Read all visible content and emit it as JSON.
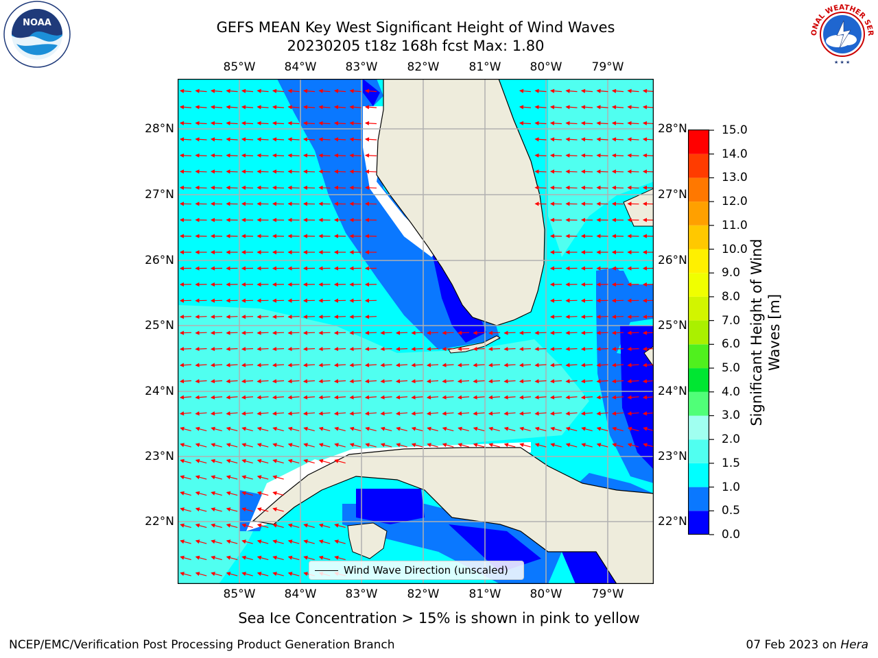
{
  "header": {
    "title_line1": "GEFS MEAN Key West Significant Height of Wind Waves",
    "title_line2": "20230205 t18z 168h fcst   Max: 1.80"
  },
  "logos": {
    "left_icon": "noaa-logo-icon",
    "left_text": "NOAA",
    "left_ring": "NATIONAL OCEANIC AND ATMOSPHERIC ADMINISTRATION · U.S. DEPARTMENT OF COMMERCE",
    "right_icon": "nws-logo-icon",
    "right_ring": "NATIONAL WEATHER SERVICE"
  },
  "map": {
    "lon_labels": [
      "85°W",
      "84°W",
      "83°W",
      "82°W",
      "81°W",
      "80°W",
      "79°W"
    ],
    "lat_labels": [
      "28°N",
      "27°N",
      "26°N",
      "25°N",
      "24°N",
      "23°N",
      "22°N"
    ],
    "gridlines": true,
    "land_color": "#eeecdc",
    "arrow_color": "#ff0000"
  },
  "colorbar": {
    "label": "Significant Height of Wind Waves [m]",
    "ticks": [
      "15.0",
      "14.0",
      "13.0",
      "12.0",
      "11.0",
      "10.0",
      "9.0",
      "8.0",
      "7.0",
      "6.0",
      "5.0",
      "4.0",
      "3.0",
      "2.0",
      "1.5",
      "1.0",
      "0.5",
      "0.0"
    ],
    "bands": [
      {
        "from": 0.0,
        "to": 0.5,
        "color": "#0000ff"
      },
      {
        "from": 0.5,
        "to": 1.0,
        "color": "#0a78ff"
      },
      {
        "from": 1.0,
        "to": 1.5,
        "color": "#00ffff"
      },
      {
        "from": 1.5,
        "to": 2.0,
        "color": "#50fff0"
      },
      {
        "from": 2.0,
        "to": 3.0,
        "color": "#a0fff0"
      },
      {
        "from": 3.0,
        "to": 4.0,
        "color": "#50ff78"
      },
      {
        "from": 4.0,
        "to": 5.0,
        "color": "#00e632"
      },
      {
        "from": 5.0,
        "to": 6.0,
        "color": "#50f01e"
      },
      {
        "from": 6.0,
        "to": 7.0,
        "color": "#aaf000"
      },
      {
        "from": 7.0,
        "to": 8.0,
        "color": "#d2f500"
      },
      {
        "from": 8.0,
        "to": 9.0,
        "color": "#f0ff00"
      },
      {
        "from": 9.0,
        "to": 10.0,
        "color": "#fff000"
      },
      {
        "from": 10.0,
        "to": 11.0,
        "color": "#ffc800"
      },
      {
        "from": 11.0,
        "to": 12.0,
        "color": "#ffa000"
      },
      {
        "from": 12.0,
        "to": 13.0,
        "color": "#ff7800"
      },
      {
        "from": 13.0,
        "to": 14.0,
        "color": "#ff3c00"
      },
      {
        "from": 14.0,
        "to": 15.0,
        "color": "#ff0000"
      }
    ]
  },
  "legend": {
    "label": "Wind Wave Direction (unscaled)"
  },
  "notes": {
    "ice": "Sea Ice Concentration > 15% is shown in pink to yellow"
  },
  "footer": {
    "left": "NCEP/EMC/Verification Post Processing Product Generation Branch",
    "date": "07 Feb 2023 on ",
    "system": "Hera"
  }
}
